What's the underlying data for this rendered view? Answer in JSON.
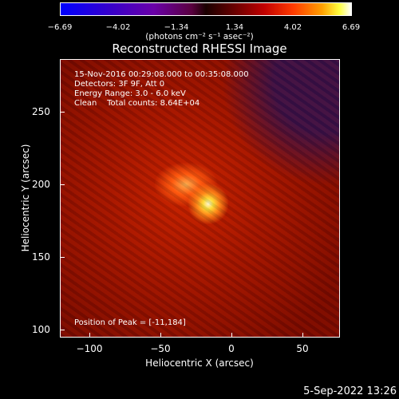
{
  "colorbar": {
    "ticks": [
      "−6.69",
      "−4.02",
      "−1.34",
      "1.34",
      "4.02",
      "6.69"
    ],
    "units": "(photons cm⁻² s⁻¹ asec⁻²)"
  },
  "title": "Reconstructed RHESSI Image",
  "annotations": {
    "time": "15-Nov-2016 00:29:08.000 to 00:35:08.000",
    "detectors": "Detectors: 3F 9F, Att 0",
    "energy": "Energy Range: 3.0 - 6.0 keV",
    "clean": "Clean    Total counts: 8.64E+04",
    "peak": "Position of Peak = [-11,184]"
  },
  "axes": {
    "xlabel": "Heliocentric X (arcsec)",
    "ylabel": "Heliocentric Y (arcsec)",
    "xticks": [
      "−100",
      "−50",
      "0",
      "50"
    ],
    "yticks": [
      "100",
      "150",
      "200",
      "250"
    ]
  },
  "footer_date": "5-Sep-2022 13:26"
}
